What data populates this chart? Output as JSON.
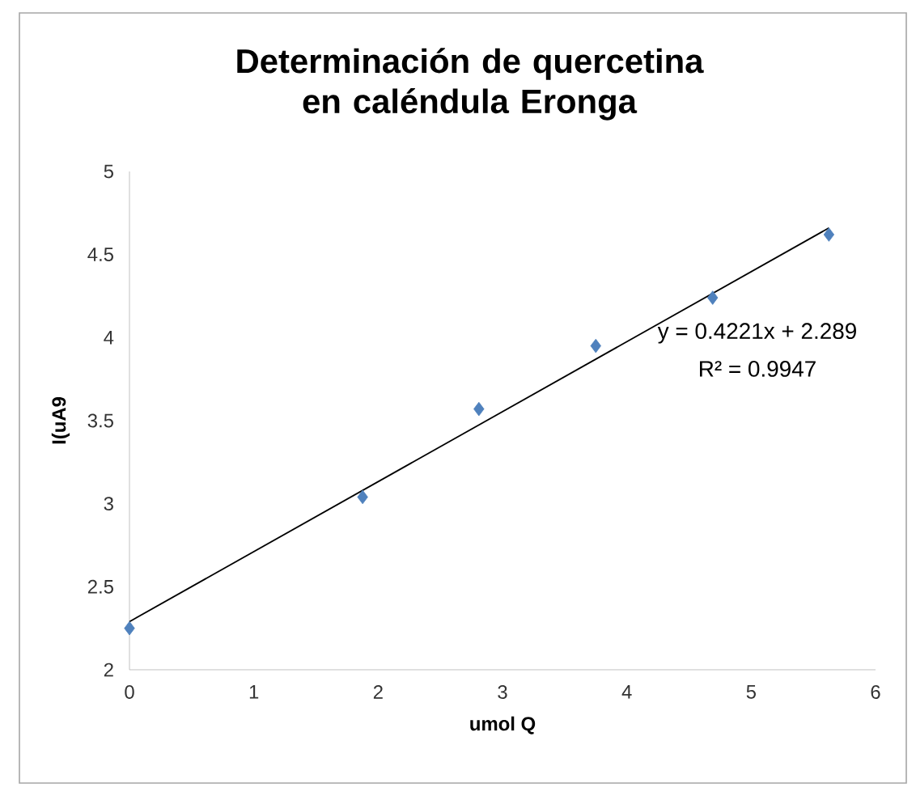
{
  "chart_data": {
    "type": "scatter",
    "title": "Determinación de quercetina en caléndula Eronga",
    "xlabel": "umol Q",
    "ylabel": "I(uA9",
    "series": [
      {
        "color": "#4f81bd",
        "marker": "diamond",
        "x": [
          0,
          1.875,
          2.81,
          3.75,
          4.69,
          5.625
        ],
        "values": [
          2.25,
          3.04,
          3.57,
          3.95,
          4.24,
          4.62
        ]
      },
      {
        "type": "line",
        "color": "#000000",
        "marker": "none",
        "x": [
          0,
          5.625
        ],
        "values": [
          2.29,
          4.66
        ]
      }
    ],
    "annotations": [
      "y = 0.4221x + 2.289",
      "R² = 0.9947"
    ],
    "xlim": [
      0,
      6
    ],
    "ylim": [
      2,
      5
    ],
    "xticks": [
      0,
      1,
      2,
      3,
      4,
      5,
      6
    ],
    "yticks": [
      2,
      2.5,
      3,
      3.5,
      4,
      4.5,
      5
    ],
    "grid": false
  }
}
